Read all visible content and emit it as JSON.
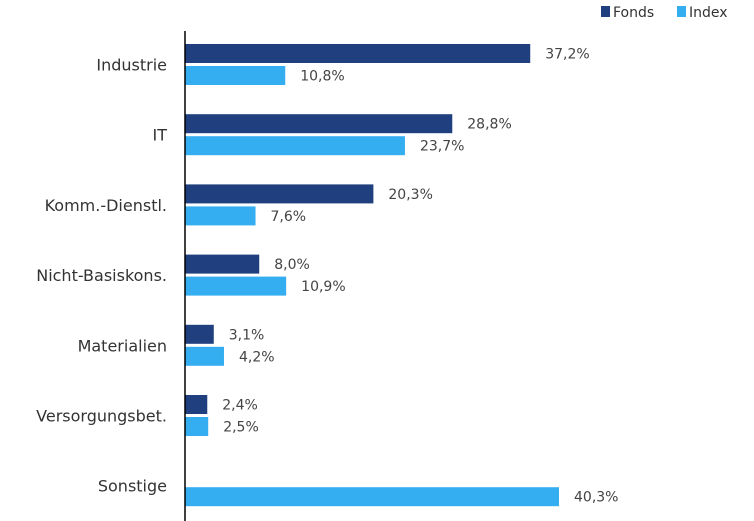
{
  "chart_data": {
    "type": "bar",
    "orientation": "horizontal",
    "categories": [
      "Industrie",
      "IT",
      "Komm.-Dienstl.",
      "Nicht-Basiskons.",
      "Materialien",
      "Versorgungsbet.",
      "Sonstige"
    ],
    "series": [
      {
        "name": "Fonds",
        "color": "#1f3f7f",
        "values": [
          37.2,
          28.8,
          20.3,
          8.0,
          3.1,
          2.4,
          null
        ],
        "labels": [
          "37,2%",
          "28,8%",
          "20,3%",
          "8,0%",
          "3,1%",
          "2,4%",
          ""
        ]
      },
      {
        "name": "Index",
        "color": "#34aef0",
        "values": [
          10.8,
          23.7,
          7.6,
          10.9,
          4.2,
          2.5,
          40.3
        ],
        "labels": [
          "10,8%",
          "23,7%",
          "7,6%",
          "10,9%",
          "4,2%",
          "2,5%",
          "40,3%"
        ]
      }
    ],
    "xlim": [
      0,
      40.3
    ],
    "grid": false,
    "legend_position": "top-right"
  }
}
